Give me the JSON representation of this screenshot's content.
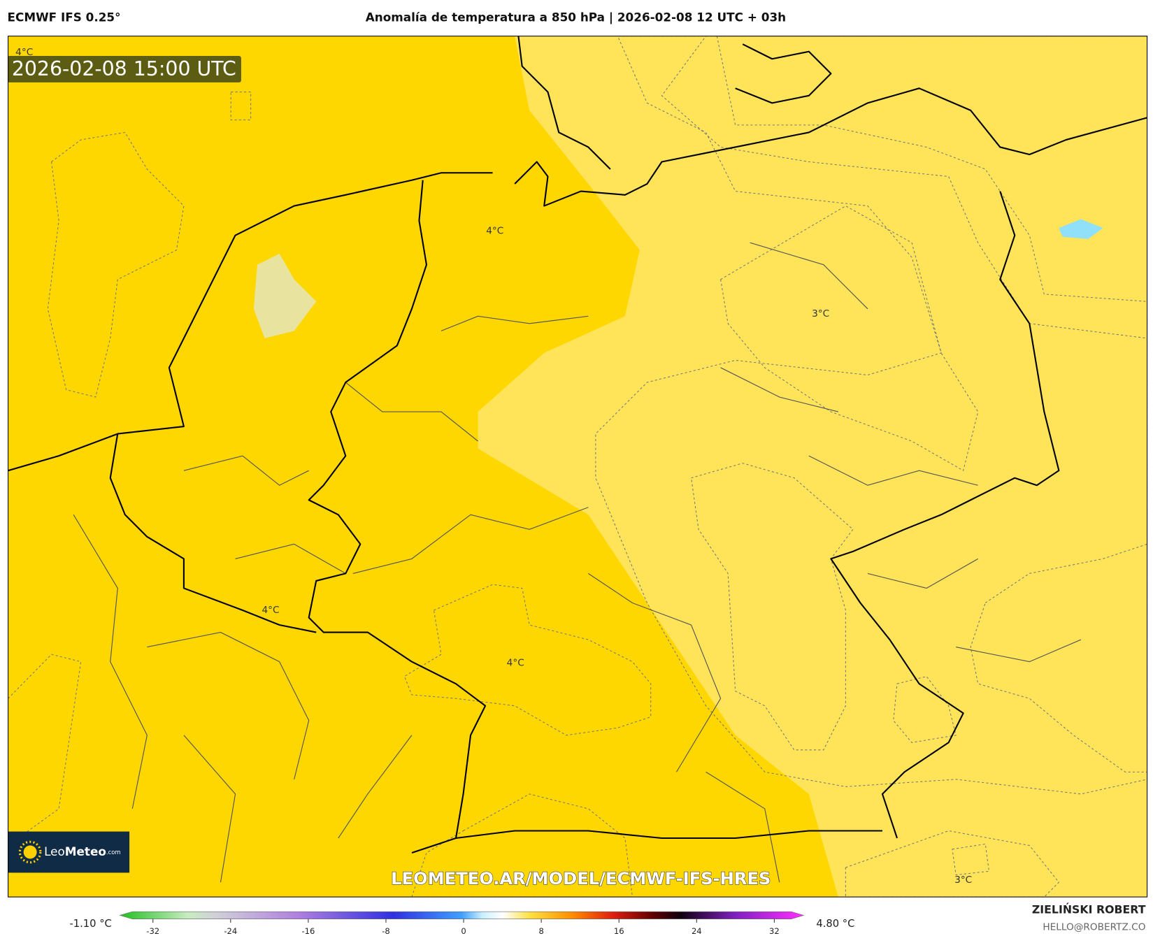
{
  "header": {
    "model": "ECMWF IFS 0.25°",
    "title": "Anomalía de temperatura a 850 hPa | 2026-02-08 12 UTC + 03h"
  },
  "map": {
    "valid_time": "2026-02-08 15:00 UTC",
    "contour_labels": [
      "4°C",
      "4°C",
      "4°C",
      "4°C",
      "3°C",
      "3°C"
    ],
    "watermark": "LEOMETEO.AR/MODEL/ECMWF-IFS-HRES",
    "logo": {
      "brand_light": "Leo",
      "brand_bold": "Meteo",
      "suffix": ".com"
    }
  },
  "colorbar": {
    "min_label": "-1.10 °C",
    "max_label": "4.80 °C",
    "lim": [
      -32,
      32
    ],
    "ticks": [
      -32,
      -24,
      -16,
      -8,
      0,
      8,
      16,
      24,
      32
    ]
  },
  "footer": {
    "author": "ZIELIŃSKI ROBERT",
    "contact": "HELLO@ROBERTZ.CO"
  }
}
